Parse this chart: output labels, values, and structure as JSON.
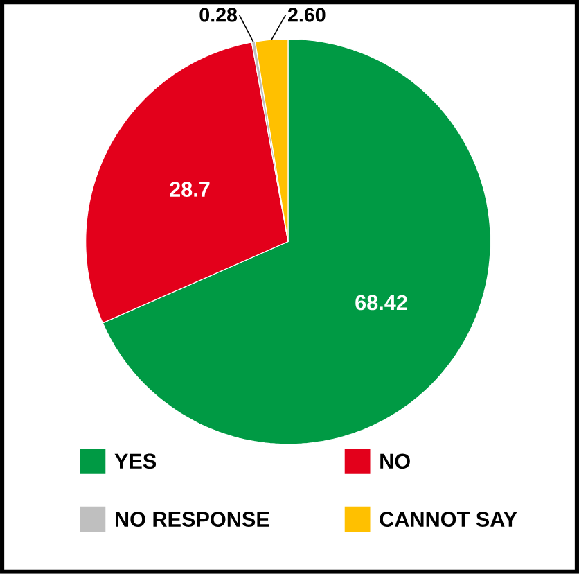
{
  "chart_data": {
    "type": "pie",
    "categories": [
      "YES",
      "NO",
      "NO RESPONSE",
      "CANNOT SAY"
    ],
    "values": [
      68.42,
      28.7,
      0.28,
      2.6
    ],
    "value_labels": [
      "68.42",
      "28.7",
      "0.28",
      "2.60"
    ],
    "colors": [
      "#009a44",
      "#e3001b",
      "#bfbfbf",
      "#ffc000"
    ],
    "legend": "bottom"
  }
}
